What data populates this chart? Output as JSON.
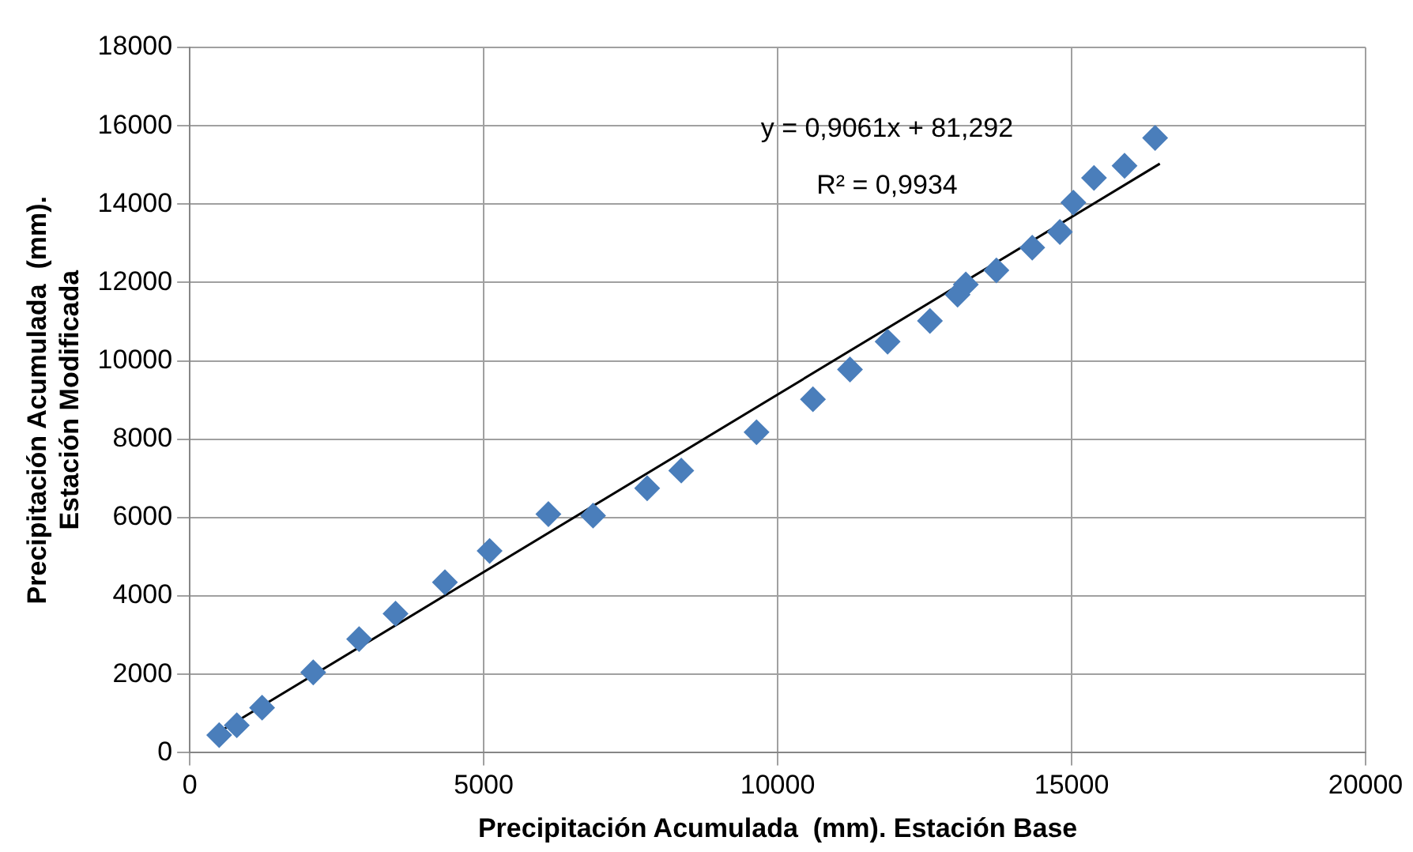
{
  "chart_data": {
    "type": "scatter",
    "xlabel": "Precipitación Acumulada  (mm). Estación Base",
    "ylabel": "Precipitación Acumulada  (mm).\nEstación Modificada",
    "xlim": [
      0,
      20000
    ],
    "xticks": [
      0,
      5000,
      10000,
      15000,
      20000
    ],
    "ylim": [
      0,
      18000
    ],
    "yticks": [
      0,
      2000,
      4000,
      6000,
      8000,
      10000,
      12000,
      14000,
      16000,
      18000
    ],
    "grid": true,
    "legend": false,
    "marker": "diamond",
    "series": [
      {
        "color": "#4a7ebb",
        "x": [
          500,
          800,
          1230,
          2100,
          2880,
          3500,
          4340,
          5100,
          6100,
          6860,
          7780,
          8360,
          9640,
          10600,
          11230,
          11870,
          12590,
          13060,
          13200,
          13720,
          14330,
          14800,
          15030,
          15380,
          15900,
          16420
        ],
        "values": [
          450,
          700,
          1150,
          2050,
          2900,
          3550,
          4350,
          5150,
          6090,
          6050,
          6750,
          7200,
          8180,
          9020,
          9780,
          10490,
          11020,
          11690,
          11950,
          12310,
          12890,
          13290,
          14040,
          14670,
          14980,
          15690
        ]
      },
      {
        "type": "line",
        "color": "#000000",
        "marker": "none",
        "x": [
          500,
          16500
        ],
        "values": [
          534,
          15032
        ]
      }
    ],
    "annotations": [
      "y = 0,9061x + 81,292",
      "R² = 0,9934"
    ]
  }
}
